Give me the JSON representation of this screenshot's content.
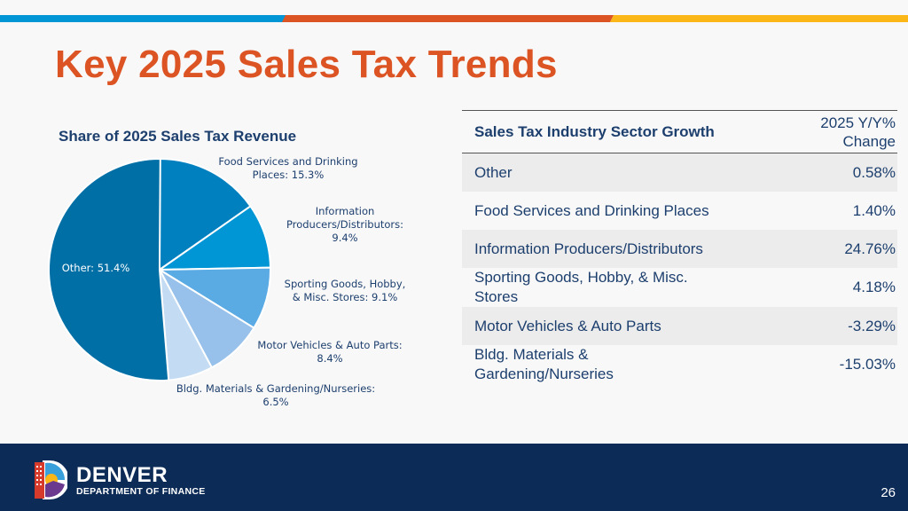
{
  "colors": {
    "accent_blue": "#0096d6",
    "accent_orange": "#dc5423",
    "accent_yellow": "#fbb617",
    "navy": "#0d2b57"
  },
  "title": "Key 2025 Sales Tax Trends",
  "chart_data": {
    "type": "pie",
    "title": "Share of 2025 Sales Tax Revenue",
    "start": "top, clockwise",
    "slices": [
      {
        "label": "Food Services and Drinking Places",
        "value": 15.3,
        "display": [
          "Food Services and Drinking",
          "Places: 15.3%"
        ],
        "color": "#0080bf"
      },
      {
        "label": "Information Producers/Distributors",
        "value": 9.4,
        "display": [
          "Information",
          "Producers/Distributors:",
          "9.4%"
        ],
        "color": "#0096d6"
      },
      {
        "label": "Sporting Goods, Hobby, & Misc. Stores",
        "value": 9.1,
        "display": [
          "Sporting Goods, Hobby,",
          "& Misc. Stores: 9.1%"
        ],
        "color": "#5aaae4"
      },
      {
        "label": "Motor Vehicles & Auto Parts",
        "value": 8.4,
        "display": [
          "Motor Vehicles & Auto Parts:",
          "8.4%"
        ],
        "color": "#97c1ea"
      },
      {
        "label": "Bldg. Materials & Gardening/Nurseries",
        "value": 6.5,
        "display": [
          "Bldg. Materials & Gardening/Nurseries:",
          "6.5%"
        ],
        "color": "#c4dcf3"
      },
      {
        "label": "Other",
        "value": 51.4,
        "display": [
          "Other: 51.4%"
        ],
        "color": "#006fa6"
      }
    ]
  },
  "table": {
    "headers": [
      "Sales Tax Industry Sector Growth",
      "2025 Y/Y% Change"
    ],
    "header_lines": [
      "2025 Y/Y%",
      "Change"
    ],
    "rows": [
      {
        "sector": "Other",
        "change": "0.58%"
      },
      {
        "sector": "Food Services and Drinking Places",
        "change": "1.40%"
      },
      {
        "sector": "Information Producers/Distributors",
        "change": "24.76%"
      },
      {
        "sector": "Sporting Goods, Hobby, & Misc. Stores",
        "change": "4.18%"
      },
      {
        "sector": "Motor Vehicles & Auto Parts",
        "change": "-3.29%"
      },
      {
        "sector": "Bldg. Materials & Gardening/Nurseries",
        "change": "-15.03%"
      }
    ]
  },
  "footer": {
    "brand": "DENVER",
    "department": "DEPARTMENT OF FINANCE",
    "page_number": "26",
    "logo": "denver-d-logo"
  }
}
